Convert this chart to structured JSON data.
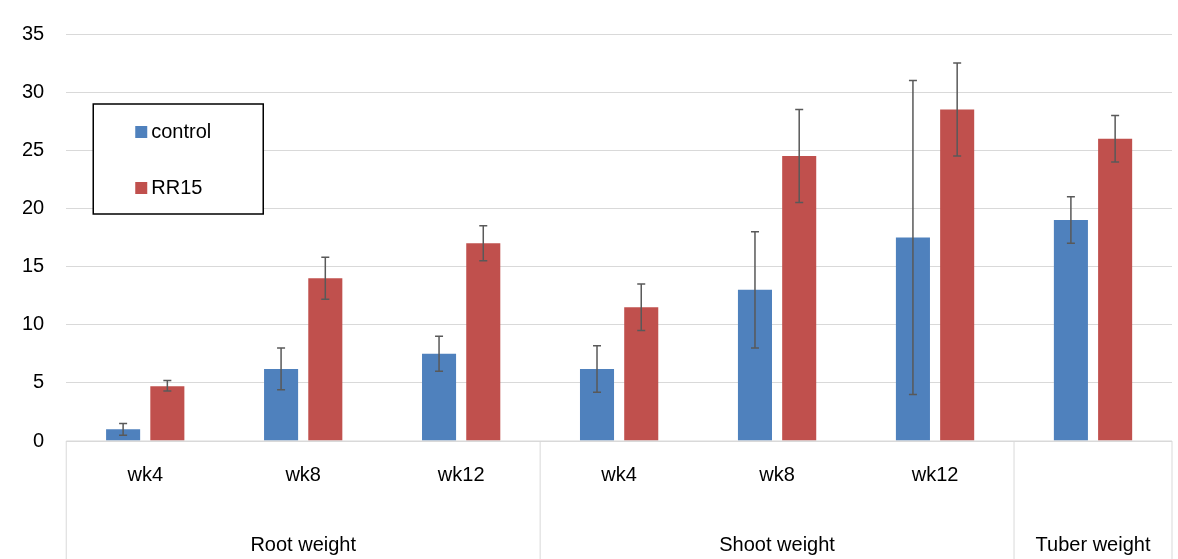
{
  "chart_data": {
    "type": "bar",
    "categories": [
      "wk4",
      "wk8",
      "wk12",
      "wk4",
      "wk8",
      "wk12",
      null
    ],
    "series": [
      {
        "name": "control",
        "color": "#4f81bd",
        "values": [
          1.0,
          6.2,
          7.5,
          6.2,
          13,
          17.5,
          19
        ],
        "errors": [
          [
            0.5,
            1.5
          ],
          [
            4.4,
            8
          ],
          [
            6,
            9
          ],
          [
            4.2,
            8.2
          ],
          [
            8,
            18
          ],
          [
            4,
            31
          ],
          [
            17,
            21
          ]
        ]
      },
      {
        "name": "RR15",
        "color": "#c0504d",
        "values": [
          4.7,
          14,
          17,
          11.5,
          24.5,
          28.5,
          26
        ],
        "errors": [
          [
            4.3,
            5.2
          ],
          [
            12.2,
            15.8
          ],
          [
            15.5,
            18.5
          ],
          [
            9.5,
            13.5
          ],
          [
            20.5,
            28.5
          ],
          [
            24.5,
            32.5
          ],
          [
            24,
            28
          ]
        ]
      }
    ],
    "annotations": [
      "Root weight",
      "Shoot weight",
      "Tuber weight"
    ],
    "ylim": [
      0,
      35
    ],
    "yticks": [
      0,
      5,
      10,
      15,
      20,
      25,
      30,
      35
    ],
    "grid": "y",
    "legend": "top left"
  }
}
